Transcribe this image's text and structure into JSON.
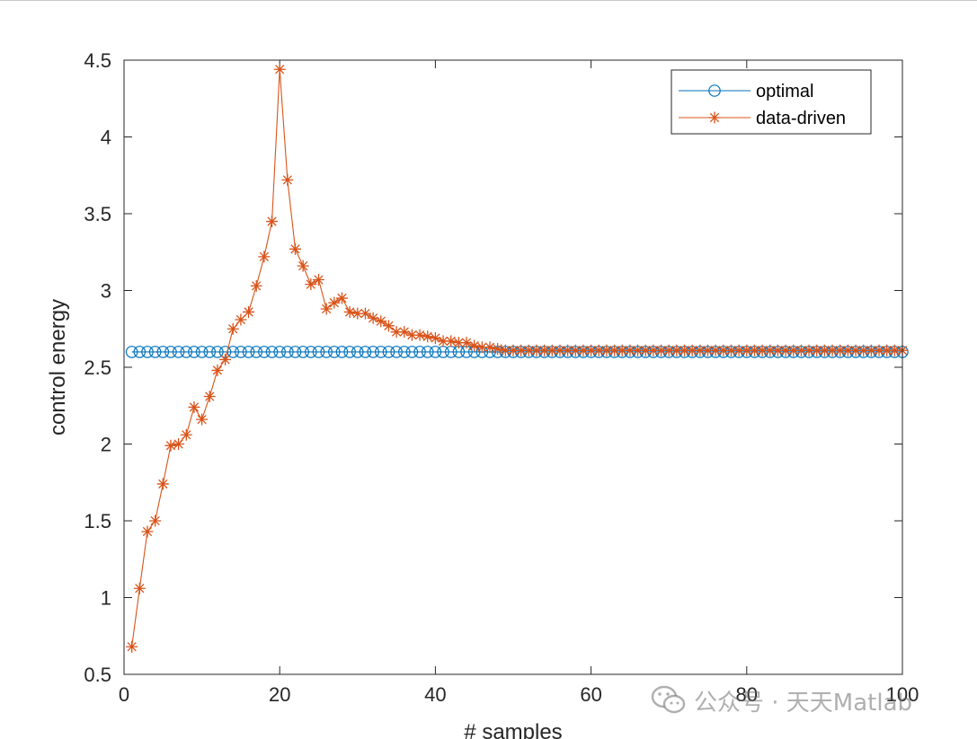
{
  "chart_data": {
    "type": "line",
    "title": "",
    "xlabel": "# samples",
    "ylabel": "control energy",
    "xlim": [
      0,
      100
    ],
    "ylim": [
      0.5,
      4.5
    ],
    "xticks": [
      0,
      20,
      40,
      60,
      80,
      100
    ],
    "xtick_labels": [
      "0",
      "20",
      "40",
      "60",
      "80",
      "100"
    ],
    "yticks": [
      0.5,
      1,
      1.5,
      2,
      2.5,
      3,
      3.5,
      4,
      4.5
    ],
    "ytick_labels": [
      "0.5",
      "1",
      "1.5",
      "2",
      "2.5",
      "3",
      "3.5",
      "4",
      "4.5"
    ],
    "grid": false,
    "legend_position": "top-right",
    "series": [
      {
        "name": "optimal",
        "color": "#0072BD",
        "marker": "circle",
        "x": [
          1,
          2,
          3,
          4,
          5,
          6,
          7,
          8,
          9,
          10,
          11,
          12,
          13,
          14,
          15,
          16,
          17,
          18,
          19,
          20,
          21,
          22,
          23,
          24,
          25,
          26,
          27,
          28,
          29,
          30,
          31,
          32,
          33,
          34,
          35,
          36,
          37,
          38,
          39,
          40,
          41,
          42,
          43,
          44,
          45,
          46,
          47,
          48,
          49,
          50,
          51,
          52,
          53,
          54,
          55,
          56,
          57,
          58,
          59,
          60,
          61,
          62,
          63,
          64,
          65,
          66,
          67,
          68,
          69,
          70,
          71,
          72,
          73,
          74,
          75,
          76,
          77,
          78,
          79,
          80,
          81,
          82,
          83,
          84,
          85,
          86,
          87,
          88,
          89,
          90,
          91,
          92,
          93,
          94,
          95,
          96,
          97,
          98,
          99,
          100
        ],
        "y": [
          2.6,
          2.6,
          2.6,
          2.6,
          2.6,
          2.6,
          2.6,
          2.6,
          2.6,
          2.6,
          2.6,
          2.6,
          2.6,
          2.6,
          2.6,
          2.6,
          2.6,
          2.6,
          2.6,
          2.6,
          2.6,
          2.6,
          2.6,
          2.6,
          2.6,
          2.6,
          2.6,
          2.6,
          2.6,
          2.6,
          2.6,
          2.6,
          2.6,
          2.6,
          2.6,
          2.6,
          2.6,
          2.6,
          2.6,
          2.6,
          2.6,
          2.6,
          2.6,
          2.6,
          2.6,
          2.6,
          2.6,
          2.6,
          2.6,
          2.6,
          2.6,
          2.6,
          2.6,
          2.6,
          2.6,
          2.6,
          2.6,
          2.6,
          2.6,
          2.6,
          2.6,
          2.6,
          2.6,
          2.6,
          2.6,
          2.6,
          2.6,
          2.6,
          2.6,
          2.6,
          2.6,
          2.6,
          2.6,
          2.6,
          2.6,
          2.6,
          2.6,
          2.6,
          2.6,
          2.6,
          2.6,
          2.6,
          2.6,
          2.6,
          2.6,
          2.6,
          2.6,
          2.6,
          2.6,
          2.6,
          2.6,
          2.6,
          2.6,
          2.6,
          2.6,
          2.6,
          2.6,
          2.6,
          2.6,
          2.6
        ]
      },
      {
        "name": "data-driven",
        "color": "#D95319",
        "marker": "asterisk",
        "x": [
          1,
          2,
          3,
          4,
          5,
          6,
          7,
          8,
          9,
          10,
          11,
          12,
          13,
          14,
          15,
          16,
          17,
          18,
          19,
          20,
          21,
          22,
          23,
          24,
          25,
          26,
          27,
          28,
          29,
          30,
          31,
          32,
          33,
          34,
          35,
          36,
          37,
          38,
          39,
          40,
          41,
          42,
          43,
          44,
          45,
          46,
          47,
          48,
          49,
          50,
          51,
          52,
          53,
          54,
          55,
          56,
          57,
          58,
          59,
          60,
          61,
          62,
          63,
          64,
          65,
          66,
          67,
          68,
          69,
          70,
          71,
          72,
          73,
          74,
          75,
          76,
          77,
          78,
          79,
          80,
          81,
          82,
          83,
          84,
          85,
          86,
          87,
          88,
          89,
          90,
          91,
          92,
          93,
          94,
          95,
          96,
          97,
          98,
          99,
          100
        ],
        "y": [
          0.68,
          1.06,
          1.43,
          1.5,
          1.74,
          1.99,
          2.0,
          2.06,
          2.24,
          2.16,
          2.31,
          2.48,
          2.55,
          2.75,
          2.81,
          2.86,
          3.03,
          3.22,
          3.45,
          4.44,
          3.72,
          3.27,
          3.16,
          3.04,
          3.07,
          2.88,
          2.92,
          2.95,
          2.86,
          2.85,
          2.85,
          2.82,
          2.8,
          2.77,
          2.73,
          2.73,
          2.71,
          2.71,
          2.7,
          2.69,
          2.67,
          2.67,
          2.66,
          2.66,
          2.64,
          2.63,
          2.63,
          2.62,
          2.61,
          2.61,
          2.61,
          2.61,
          2.61,
          2.61,
          2.61,
          2.61,
          2.61,
          2.61,
          2.61,
          2.61,
          2.61,
          2.61,
          2.61,
          2.61,
          2.61,
          2.61,
          2.61,
          2.61,
          2.61,
          2.61,
          2.61,
          2.61,
          2.61,
          2.61,
          2.61,
          2.61,
          2.61,
          2.61,
          2.61,
          2.61,
          2.61,
          2.61,
          2.61,
          2.61,
          2.61,
          2.61,
          2.61,
          2.61,
          2.61,
          2.61,
          2.61,
          2.61,
          2.61,
          2.61,
          2.61,
          2.61,
          2.61,
          2.61,
          2.61,
          2.61
        ]
      }
    ]
  },
  "watermark": {
    "text": "公众号 · 天天Matlab",
    "icon": "wechat-icon"
  }
}
